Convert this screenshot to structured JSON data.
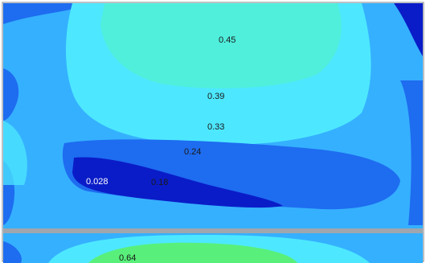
{
  "chart_data": {
    "type": "heatmap",
    "title": "",
    "xlabel": "",
    "ylabel": "",
    "contour_labels": [
      {
        "value": "0.45"
      },
      {
        "value": "0.39"
      },
      {
        "value": "0.33"
      },
      {
        "value": "0.24"
      },
      {
        "value": "0.028"
      },
      {
        "value": "0.18"
      },
      {
        "value": "0.64"
      }
    ],
    "colors": {
      "deep": "#0a1cc8",
      "low": "#1e6cf0",
      "mid": "#35b0ff",
      "cyan": "#4de8ff",
      "teal": "#50f0d6",
      "green": "#58f07a",
      "divider": "#9fa6ad"
    }
  }
}
